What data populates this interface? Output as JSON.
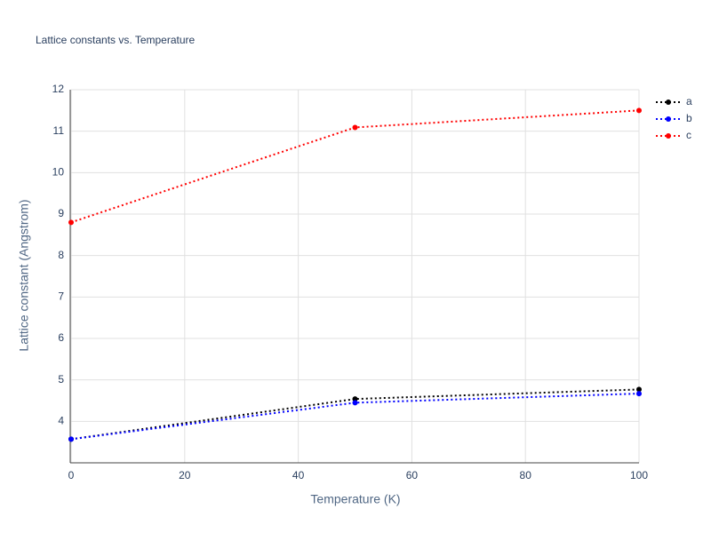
{
  "chart_data": {
    "type": "line",
    "title": "Lattice constants vs. Temperature",
    "x_label": "Temperature (K)",
    "y_label": "Lattice constant (Angstrom)",
    "x": [
      0,
      50,
      100
    ],
    "series": [
      {
        "name": "a",
        "color": "#000000",
        "values": [
          3.57,
          4.54,
          4.77
        ]
      },
      {
        "name": "b",
        "color": "#0000ff",
        "values": [
          3.57,
          4.45,
          4.67
        ]
      },
      {
        "name": "c",
        "color": "#ff0000",
        "values": [
          8.8,
          11.09,
          11.5
        ]
      }
    ],
    "xlim": [
      0,
      100
    ],
    "xticks": [
      0,
      20,
      40,
      60,
      80,
      100
    ],
    "ylim": [
      3,
      12
    ],
    "yticks": [
      4,
      5,
      6,
      7,
      8,
      9,
      10,
      11,
      12
    ],
    "grid": true,
    "legend": "top-right"
  }
}
